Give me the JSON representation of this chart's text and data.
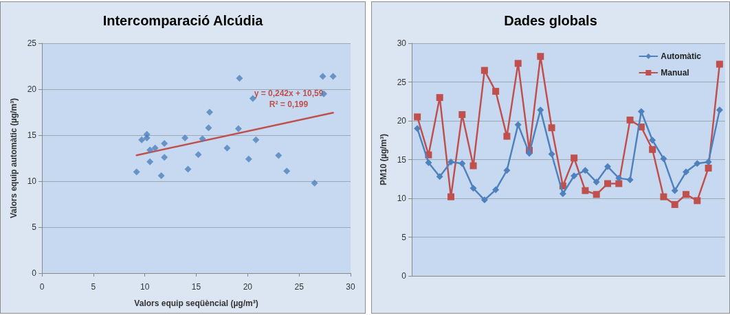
{
  "chart_data": [
    {
      "type": "scatter",
      "title": "Intercomparació Alcúdia",
      "xlabel": "Valors equip seqüèncial (µg/m³)",
      "ylabel": "Valors equip automàtic (µg/m³)",
      "series": [
        {
          "type": "scatter",
          "color": "#4f81bd",
          "marker": "diamond",
          "x": [
            20.5,
            15.6,
            23.0,
            10.2,
            20.8,
            14.2,
            26.5,
            23.8,
            18.0,
            27.4,
            16.2,
            28.3,
            19.1,
            11.6,
            15.2,
            11.0,
            10.5,
            11.9,
            11.9,
            20.1,
            19.2,
            16.3,
            10.2,
            9.2,
            10.5,
            9.7,
            13.9,
            27.3
          ],
          "values": [
            19.0,
            14.6,
            12.8,
            14.7,
            14.5,
            11.3,
            9.8,
            11.1,
            13.6,
            19.5,
            15.8,
            21.4,
            15.7,
            10.6,
            12.9,
            13.6,
            12.1,
            14.1,
            12.6,
            12.4,
            21.2,
            17.5,
            15.1,
            11.0,
            13.4,
            14.5,
            14.7,
            21.4
          ]
        },
        {
          "type": "line",
          "color": "#c0504d",
          "marker": "none",
          "x": [
            9.2,
            28.3
          ],
          "values": [
            12.82,
            17.44
          ]
        }
      ],
      "annotations": [
        "y = 0,242x + 10,59",
        "R² = 0,199"
      ],
      "xlim": [
        0,
        30
      ],
      "xticks": [
        0,
        5,
        10,
        15,
        20,
        25,
        30
      ],
      "ylim": [
        0,
        25
      ],
      "yticks": [
        0,
        5,
        10,
        15,
        20,
        25
      ],
      "grid": "y",
      "legend": false
    },
    {
      "type": "line",
      "title": "Dades globals",
      "ylabel": "PM10 (µg/m³)",
      "categories": [
        null,
        null,
        null,
        null,
        null,
        null,
        null,
        null,
        null,
        null,
        null,
        null,
        null,
        null,
        null,
        null,
        null,
        null,
        null,
        null,
        null,
        null,
        null,
        null,
        null,
        null,
        null,
        null
      ],
      "series": [
        {
          "name": "Automàtic",
          "color": "#4f81bd",
          "marker": "diamond",
          "values": [
            19.0,
            14.6,
            12.8,
            14.7,
            14.5,
            11.3,
            9.8,
            11.1,
            13.6,
            19.5,
            15.8,
            21.4,
            15.7,
            10.6,
            12.9,
            13.6,
            12.1,
            14.1,
            12.6,
            12.4,
            21.2,
            17.5,
            15.1,
            11.0,
            13.4,
            14.5,
            14.7,
            21.4
          ]
        },
        {
          "name": "Manual",
          "color": "#c0504d",
          "marker": "square",
          "values": [
            20.5,
            15.6,
            23.0,
            10.2,
            20.8,
            14.2,
            26.5,
            23.8,
            18.0,
            27.4,
            16.2,
            28.3,
            19.1,
            11.6,
            15.2,
            11.0,
            10.5,
            11.9,
            11.9,
            20.1,
            19.2,
            16.3,
            10.2,
            9.2,
            10.5,
            9.7,
            13.9,
            27.3
          ]
        }
      ],
      "ylim": [
        0,
        30
      ],
      "yticks": [
        0,
        5,
        10,
        15,
        20,
        25,
        30
      ],
      "grid": "y",
      "legend": "top right"
    }
  ]
}
